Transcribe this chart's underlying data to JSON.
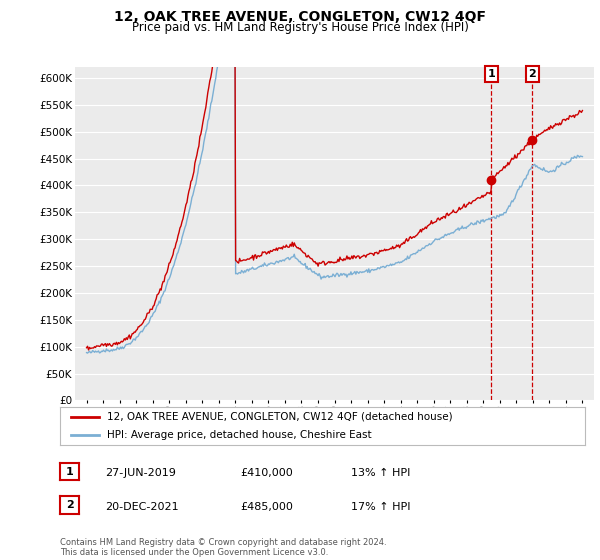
{
  "title": "12, OAK TREE AVENUE, CONGLETON, CW12 4QF",
  "subtitle": "Price paid vs. HM Land Registry's House Price Index (HPI)",
  "ylim": [
    0,
    620000
  ],
  "yticks": [
    0,
    50000,
    100000,
    150000,
    200000,
    250000,
    300000,
    350000,
    400000,
    450000,
    500000,
    550000,
    600000
  ],
  "ytick_labels": [
    "£0",
    "£50K",
    "£100K",
    "£150K",
    "£200K",
    "£250K",
    "£300K",
    "£350K",
    "£400K",
    "£450K",
    "£500K",
    "£550K",
    "£600K"
  ],
  "background_color": "#ffffff",
  "plot_bg_color": "#ebebeb",
  "grid_color": "#ffffff",
  "sale1_date": 2019.49,
  "sale1_value": 410000,
  "sale2_date": 2021.97,
  "sale2_value": 485000,
  "legend_line1": "12, OAK TREE AVENUE, CONGLETON, CW12 4QF (detached house)",
  "legend_line2": "HPI: Average price, detached house, Cheshire East",
  "table_row1": [
    "1",
    "27-JUN-2019",
    "£410,000",
    "13% ↑ HPI"
  ],
  "table_row2": [
    "2",
    "20-DEC-2021",
    "£485,000",
    "17% ↑ HPI"
  ],
  "footer": "Contains HM Land Registry data © Crown copyright and database right 2024.\nThis data is licensed under the Open Government Licence v3.0.",
  "line_color_red": "#cc0000",
  "line_color_blue": "#7bafd4",
  "sale_marker_color": "#cc0000",
  "xlim_left": 1994.3,
  "xlim_right": 2025.7
}
